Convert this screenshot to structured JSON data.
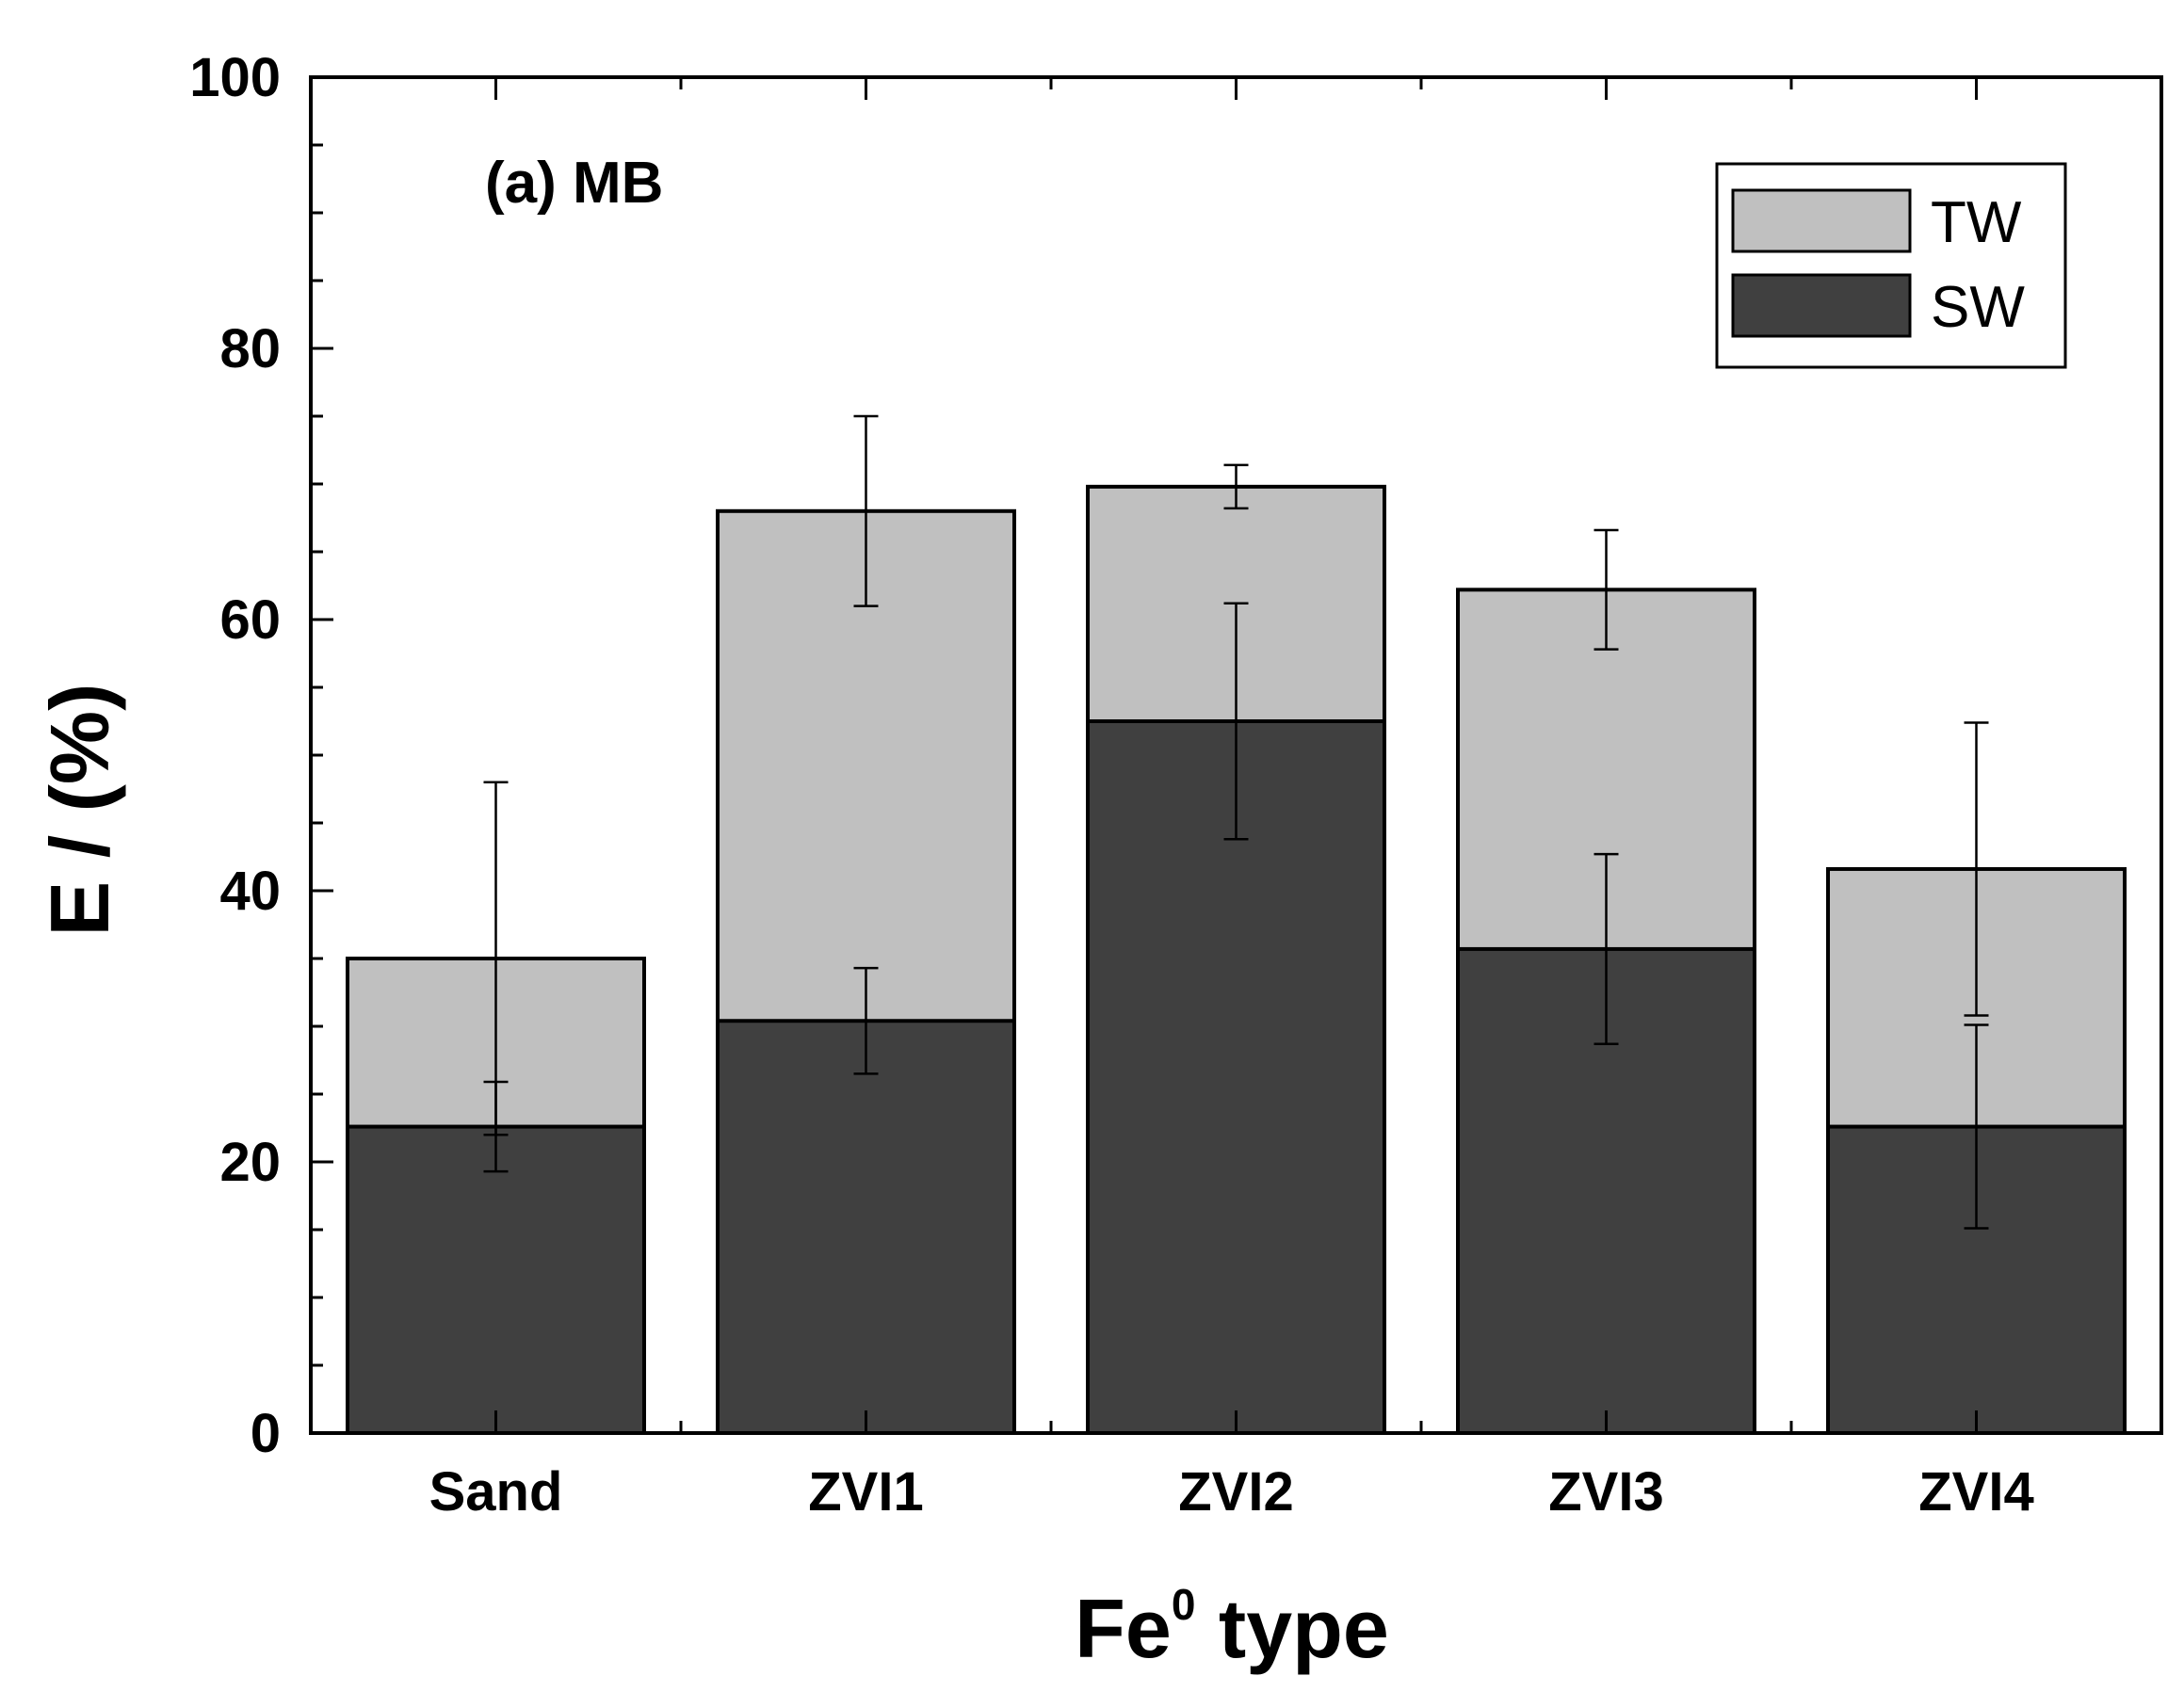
{
  "chart_data": {
    "type": "bar",
    "stacking": "overlay",
    "panel_label": "(a) MB",
    "xlabel_main": "Fe",
    "xlabel_sup": "0",
    "xlabel_rest": " type",
    "ylabel": "E / (%)",
    "ylim": [
      0,
      100
    ],
    "yticks": [
      0,
      20,
      40,
      60,
      80,
      100
    ],
    "categories": [
      "Sand",
      "ZVI1",
      "ZVI2",
      "ZVI3",
      "ZVI4"
    ],
    "series": [
      {
        "name": "TW",
        "color": "#c0c0c0",
        "values": [
          35.0,
          68.0,
          69.8,
          62.2,
          41.6
        ],
        "errors": [
          13.0,
          7.0,
          1.6,
          4.4,
          10.8
        ]
      },
      {
        "name": "SW",
        "color": "#404040",
        "values": [
          22.6,
          30.4,
          52.5,
          35.7,
          22.6
        ],
        "errors": [
          3.3,
          3.9,
          8.7,
          7.0,
          7.5
        ]
      }
    ],
    "legend": {
      "position": "top-right",
      "entries": [
        "TW",
        "SW"
      ]
    }
  }
}
